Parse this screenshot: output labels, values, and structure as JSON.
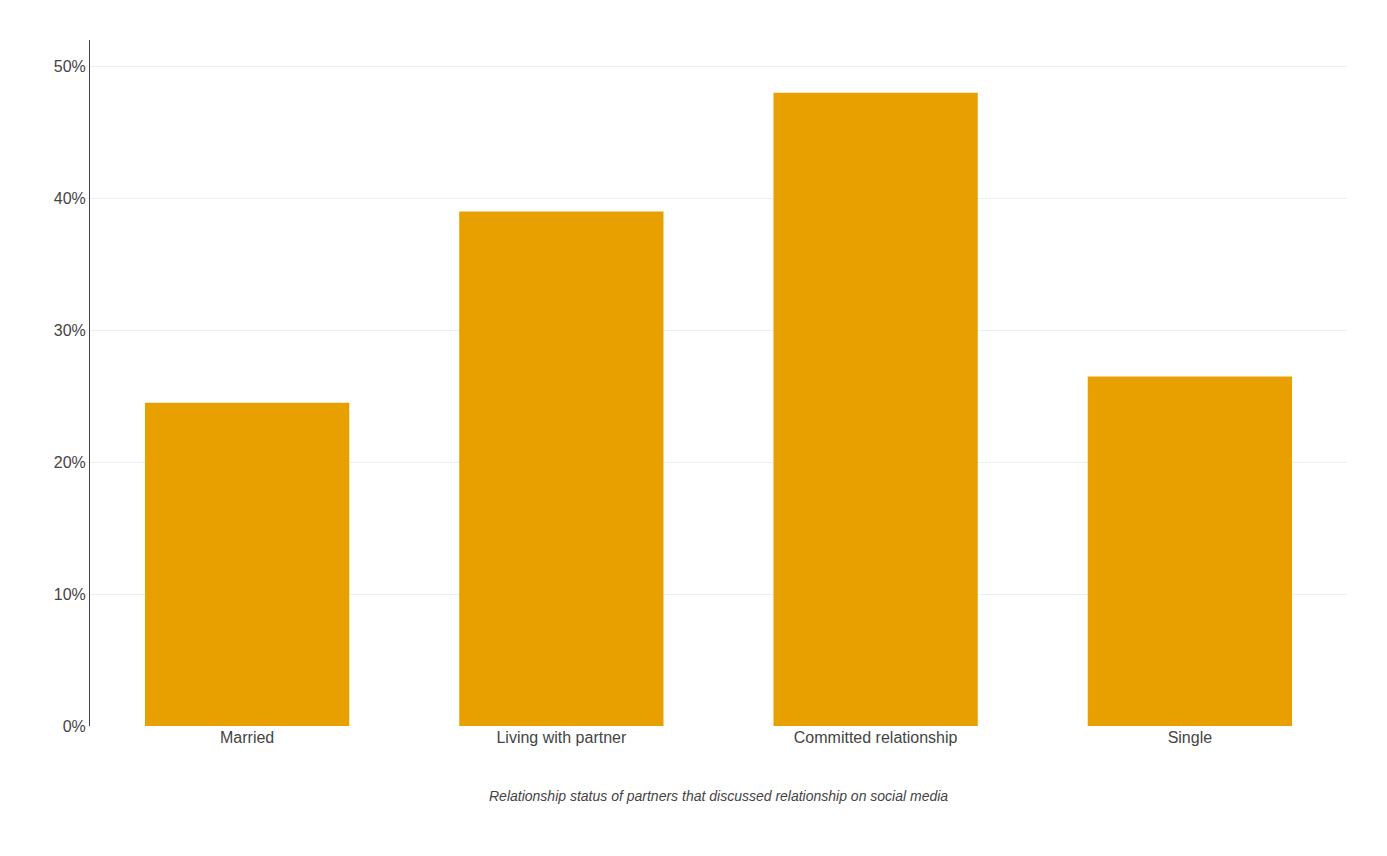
{
  "chart_data": {
    "type": "bar",
    "categories": [
      "Married",
      "Living with partner",
      "Committed relationship",
      "Single"
    ],
    "values": [
      24.5,
      39.0,
      48.0,
      26.5
    ],
    "color": "#E8A000",
    "ylim": [
      0,
      52
    ],
    "yticks": [
      {
        "value": 0,
        "label": "0%"
      },
      {
        "value": 10,
        "label": "10%"
      },
      {
        "value": 20,
        "label": "20%"
      },
      {
        "value": 30,
        "label": "30%"
      },
      {
        "value": 40,
        "label": "40%"
      },
      {
        "value": 50,
        "label": "50%"
      }
    ],
    "grid": true,
    "annotations": [
      "Relationship status of partners that discussed relationship on social media"
    ]
  }
}
